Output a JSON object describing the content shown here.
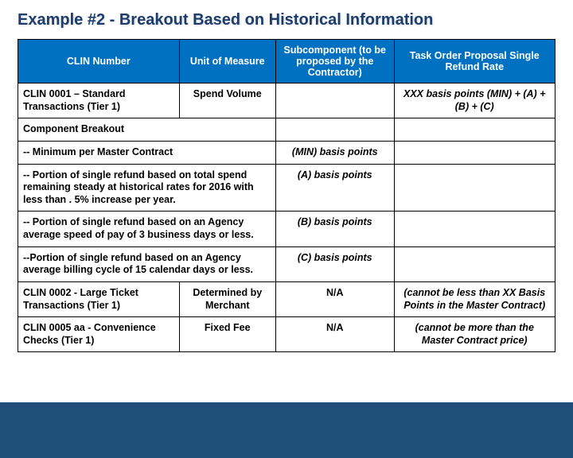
{
  "title": "Example #2 - Breakout Based on Historical Information",
  "colors": {
    "title_color": "#1c3d6e",
    "header_bg": "#0070c0",
    "header_text": "#ffffff",
    "border": "#000000",
    "bottom_band": "#1f4e79"
  },
  "table": {
    "headers": {
      "c1": "CLIN Number",
      "c2": "Unit of Measure",
      "c3": "Subcomponent (to be proposed by the Contractor)",
      "c4": "Task Order Proposal Single Refund Rate"
    },
    "rows": [
      {
        "c1": "CLIN 0001 – Standard Transactions\n(Tier 1)",
        "c2": "Spend Volume",
        "c3": "",
        "c4": "XXX basis points\n(MIN) + (A) + (B) + (C)",
        "c1_bold": true,
        "c2_bold": true,
        "c4_bold": true,
        "c4_italic": true,
        "c4_center": true,
        "c2_center": true
      },
      {
        "c1": "Component Breakout",
        "span12": true,
        "c3": "",
        "c4": "",
        "c1_bold": true
      },
      {
        "c1": "-- Minimum per Master Contract",
        "span12": true,
        "c3": "(MIN) basis points",
        "c4": "",
        "c1_bold": true,
        "c3_bold": true,
        "c3_italic": true,
        "c3_center": true
      },
      {
        "c1": "-- Portion of single refund based on total spend remaining steady at historical rates for 2016 with less than . 5% increase per year.",
        "span12": true,
        "c3": "(A) basis points",
        "c4": "",
        "c1_bold": true,
        "c3_bold": true,
        "c3_italic": true,
        "c3_center": true
      },
      {
        "c1": "-- Portion of single refund based on an Agency average speed of pay of 3 business days or less.",
        "span12": true,
        "c3": "(B) basis points",
        "c4": "",
        "c1_bold": true,
        "c3_bold": true,
        "c3_italic": true,
        "c3_center": true
      },
      {
        "c1": "--Portion of single refund based on an Agency average billing cycle of 15 calendar days or less.",
        "span12": true,
        "c3": "(C) basis points",
        "c4": "",
        "c1_bold": true,
        "c3_bold": true,
        "c3_italic": true,
        "c3_center": true
      },
      {
        "c1": "CLIN 0002 - Large Ticket Transactions (Tier 1)",
        "c2": "Determined by Merchant",
        "c3": "N/A",
        "c4": "(cannot be less than XX Basis Points in the Master Contract)",
        "c1_bold": true,
        "c2_bold": true,
        "c2_center": true,
        "c3_bold": true,
        "c3_center": true,
        "c4_bold": true,
        "c4_italic": true,
        "c4_center": true
      },
      {
        "c1": "CLIN 0005 aa - Convenience Checks (Tier 1)",
        "c2": "Fixed Fee",
        "c3": "N/A",
        "c4": "(cannot be more than the Master Contract price)",
        "c1_bold": true,
        "c2_bold": true,
        "c2_center": true,
        "c3_bold": true,
        "c3_center": true,
        "c4_bold": true,
        "c4_italic": true,
        "c4_center": true
      }
    ]
  }
}
